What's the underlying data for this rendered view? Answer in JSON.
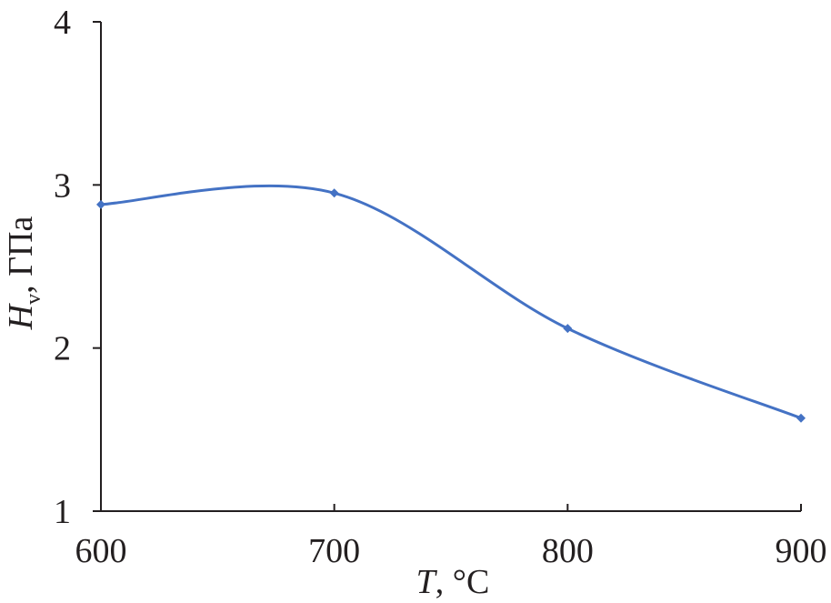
{
  "chart_data": {
    "type": "line",
    "title": "",
    "xlabel": {
      "var": "T",
      "unit": ", °C"
    },
    "ylabel": {
      "var": "H",
      "sub": "v",
      "unit": ", ГПа"
    },
    "xlim": [
      600,
      900
    ],
    "ylim": [
      1,
      4
    ],
    "xticks": [
      "600",
      "700",
      "800",
      "900"
    ],
    "yticks": [
      "1",
      "2",
      "3",
      "4"
    ],
    "grid": false,
    "legend": "none",
    "smooth": true,
    "series": [
      {
        "color": "#4472c4",
        "x": [
          600,
          700,
          800,
          900
        ],
        "y": [
          2.88,
          2.95,
          2.12,
          1.57
        ]
      }
    ]
  }
}
